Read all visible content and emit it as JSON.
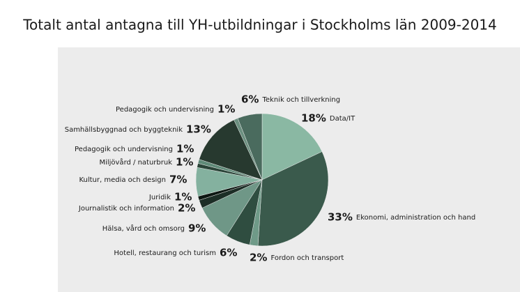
{
  "chart_data": {
    "type": "pie",
    "title": "Totalt antal antagna till YH-utbildningar i Stockholms län 2009-2014",
    "categories": [
      "Data/IT",
      "Ekonomi, administration och hand",
      "Fordon och transport",
      "Hotell, restaurang och turism",
      "Hälsa, vård och omsorg",
      "Journalistik och information",
      "Juridik",
      "Kultur, media och design",
      "Miljövård / naturbruk",
      "Pedagogik och undervisning",
      "Samhällsbyggnad och byggteknik",
      "Pedagogik och undervisning",
      "Teknik och tillverkning"
    ],
    "values": [
      18,
      33,
      2,
      6,
      9,
      2,
      1,
      7,
      1,
      1,
      13,
      1,
      6
    ],
    "value_labels": [
      "18%",
      "33%",
      "2%",
      "6%",
      "9%",
      "2%",
      "1%",
      "7%",
      "1%",
      "1%",
      "13%",
      "1%",
      "6%"
    ],
    "colors": [
      "#8ab8a3",
      "#3a5a4c",
      "#6f9a88",
      "#2f4d40",
      "#6f9787",
      "#1c2e26",
      "#0d1712",
      "#84b19f",
      "#2a4438",
      "#5f8a78",
      "#27392f",
      "#6b8f7f",
      "#4a6b5e"
    ]
  }
}
